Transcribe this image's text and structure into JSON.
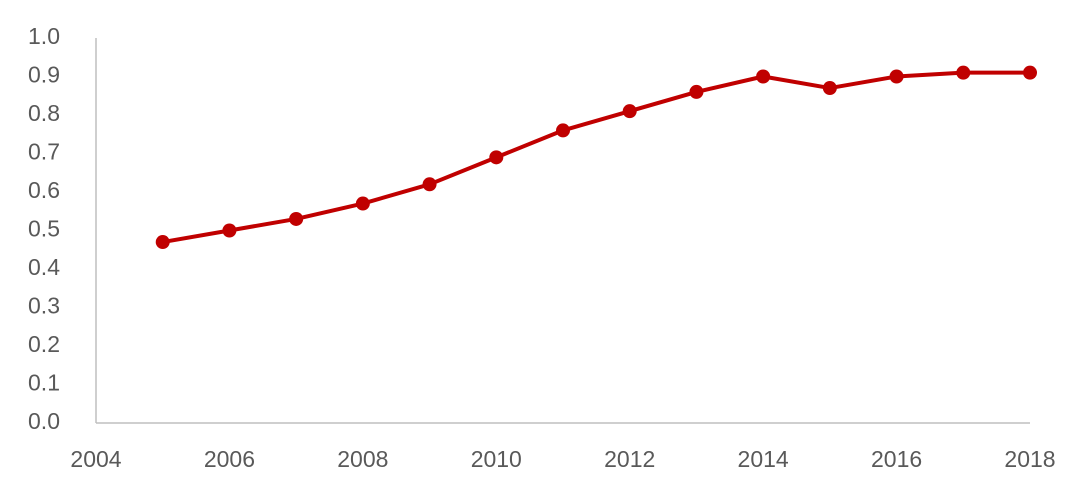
{
  "chart_data": {
    "type": "line",
    "x": [
      2005,
      2006,
      2007,
      2008,
      2009,
      2010,
      2011,
      2012,
      2013,
      2014,
      2015,
      2016,
      2017,
      2018
    ],
    "series": [
      {
        "name": null,
        "color": "#c00000",
        "values": [
          0.47,
          0.5,
          0.53,
          0.57,
          0.62,
          0.69,
          0.76,
          0.81,
          0.86,
          0.9,
          0.87,
          0.9,
          0.91,
          0.91
        ]
      }
    ],
    "xlim": [
      2004,
      2018
    ],
    "xticks": [
      2004,
      2006,
      2008,
      2010,
      2012,
      2014,
      2016,
      2018
    ],
    "ylim": [
      0,
      1
    ],
    "yticks": [
      {
        "value": 0,
        "label": "0.0"
      },
      0.1,
      0.2,
      0.3,
      0.4,
      0.5,
      0.6,
      0.7,
      0.8,
      0.9,
      {
        "value": 1,
        "label": "1.0"
      }
    ],
    "grid": false,
    "markers": true
  }
}
